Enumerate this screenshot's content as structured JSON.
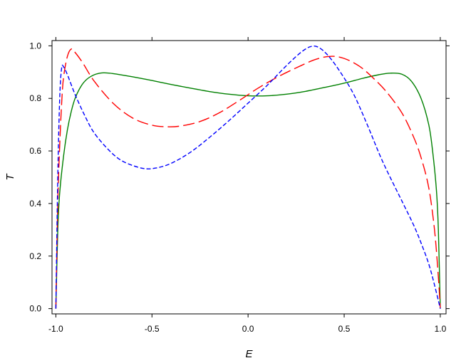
{
  "chart_data": {
    "type": "line",
    "title": "",
    "xlabel": "E",
    "ylabel": "T",
    "xlim": [
      -1.02,
      1.03
    ],
    "ylim": [
      -0.02,
      1.02
    ],
    "x_ticks": [
      -1.0,
      -0.5,
      0.0,
      0.5,
      1.0
    ],
    "x_tick_labels": [
      "-1.0",
      "-0.5",
      "0.0",
      "0.5",
      "1.0"
    ],
    "y_ticks": [
      0.0,
      0.2,
      0.4,
      0.6,
      0.8,
      1.0
    ],
    "y_tick_labels": [
      "0.0",
      "0.2",
      "0.4",
      "0.6",
      "0.8",
      "1.0"
    ],
    "grid": false,
    "legend": "none",
    "series": [
      {
        "color": "#008000",
        "dash": "solid",
        "points": [
          [
            -1.0,
            0.0
          ],
          [
            -0.99,
            0.3
          ],
          [
            -0.98,
            0.44
          ],
          [
            -0.96,
            0.58
          ],
          [
            -0.94,
            0.68
          ],
          [
            -0.92,
            0.75
          ],
          [
            -0.9,
            0.8
          ],
          [
            -0.87,
            0.845
          ],
          [
            -0.84,
            0.872
          ],
          [
            -0.8,
            0.89
          ],
          [
            -0.76,
            0.897
          ],
          [
            -0.72,
            0.896
          ],
          [
            -0.68,
            0.892
          ],
          [
            -0.6,
            0.882
          ],
          [
            -0.5,
            0.868
          ],
          [
            -0.4,
            0.853
          ],
          [
            -0.3,
            0.839
          ],
          [
            -0.2,
            0.826
          ],
          [
            -0.1,
            0.816
          ],
          [
            0.0,
            0.81
          ],
          [
            0.1,
            0.81
          ],
          [
            0.2,
            0.816
          ],
          [
            0.3,
            0.827
          ],
          [
            0.4,
            0.842
          ],
          [
            0.5,
            0.858
          ],
          [
            0.6,
            0.877
          ],
          [
            0.68,
            0.89
          ],
          [
            0.74,
            0.896
          ],
          [
            0.8,
            0.892
          ],
          [
            0.85,
            0.865
          ],
          [
            0.9,
            0.8
          ],
          [
            0.94,
            0.7
          ],
          [
            0.96,
            0.6
          ],
          [
            0.98,
            0.45
          ],
          [
            0.99,
            0.3
          ],
          [
            1.0,
            0.0
          ]
        ]
      },
      {
        "color": "#ff0000",
        "dash": "long-dash",
        "points": [
          [
            -1.0,
            0.0
          ],
          [
            -0.99,
            0.4
          ],
          [
            -0.98,
            0.62
          ],
          [
            -0.97,
            0.78
          ],
          [
            -0.96,
            0.88
          ],
          [
            -0.94,
            0.96
          ],
          [
            -0.92,
            0.988
          ],
          [
            -0.9,
            0.975
          ],
          [
            -0.86,
            0.935
          ],
          [
            -0.8,
            0.865
          ],
          [
            -0.7,
            0.78
          ],
          [
            -0.6,
            0.725
          ],
          [
            -0.5,
            0.698
          ],
          [
            -0.42,
            0.692
          ],
          [
            -0.35,
            0.695
          ],
          [
            -0.25,
            0.712
          ],
          [
            -0.15,
            0.745
          ],
          [
            -0.05,
            0.79
          ],
          [
            0.05,
            0.838
          ],
          [
            0.15,
            0.88
          ],
          [
            0.25,
            0.916
          ],
          [
            0.35,
            0.948
          ],
          [
            0.43,
            0.96
          ],
          [
            0.5,
            0.952
          ],
          [
            0.58,
            0.922
          ],
          [
            0.65,
            0.878
          ],
          [
            0.72,
            0.825
          ],
          [
            0.8,
            0.745
          ],
          [
            0.86,
            0.655
          ],
          [
            0.9,
            0.575
          ],
          [
            0.94,
            0.46
          ],
          [
            0.97,
            0.3
          ],
          [
            0.99,
            0.12
          ],
          [
            1.0,
            0.0
          ]
        ]
      },
      {
        "color": "#0000ff",
        "dash": "short-dash",
        "points": [
          [
            -1.0,
            0.0
          ],
          [
            -0.99,
            0.5
          ],
          [
            -0.98,
            0.8
          ],
          [
            -0.97,
            0.915
          ],
          [
            -0.96,
            0.92
          ],
          [
            -0.94,
            0.89
          ],
          [
            -0.9,
            0.815
          ],
          [
            -0.85,
            0.735
          ],
          [
            -0.8,
            0.668
          ],
          [
            -0.72,
            0.6
          ],
          [
            -0.65,
            0.56
          ],
          [
            -0.55,
            0.534
          ],
          [
            -0.48,
            0.535
          ],
          [
            -0.4,
            0.553
          ],
          [
            -0.3,
            0.595
          ],
          [
            -0.2,
            0.652
          ],
          [
            -0.1,
            0.715
          ],
          [
            0.0,
            0.782
          ],
          [
            0.1,
            0.85
          ],
          [
            0.2,
            0.925
          ],
          [
            0.28,
            0.978
          ],
          [
            0.33,
            0.998
          ],
          [
            0.37,
            0.993
          ],
          [
            0.42,
            0.96
          ],
          [
            0.48,
            0.9
          ],
          [
            0.55,
            0.815
          ],
          [
            0.62,
            0.7
          ],
          [
            0.7,
            0.56
          ],
          [
            0.8,
            0.41
          ],
          [
            0.86,
            0.32
          ],
          [
            0.9,
            0.25
          ],
          [
            0.94,
            0.17
          ],
          [
            0.97,
            0.09
          ],
          [
            1.0,
            0.0
          ]
        ]
      }
    ]
  }
}
